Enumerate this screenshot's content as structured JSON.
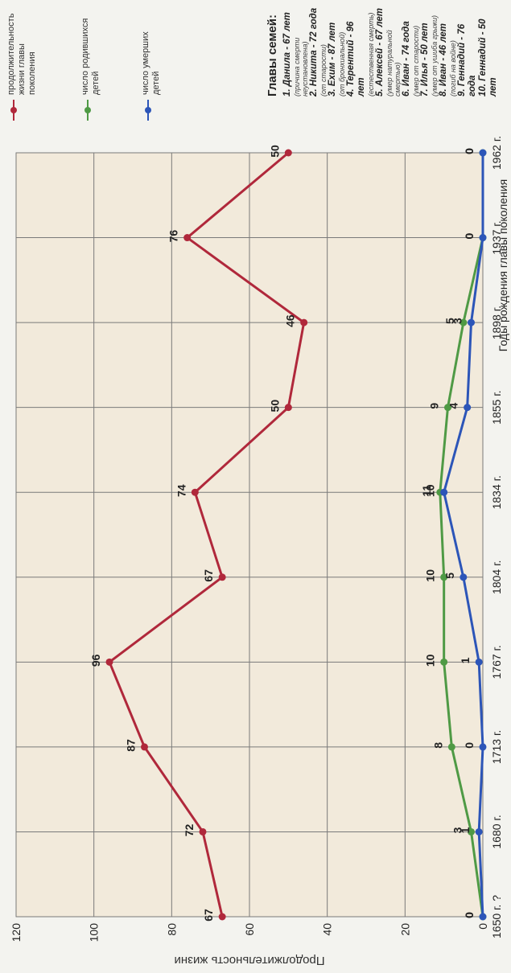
{
  "chart_data": {
    "type": "line",
    "categories": [
      "1650 г. ?",
      "1680 г.",
      "1713 г.",
      "1767 г.",
      "1804 г.",
      "1834 г.",
      "1855 г.",
      "1898 г.",
      "1937 г.",
      "1962 г."
    ],
    "ylabel": "Продолжительность жизни",
    "xlabel": "Годы рождения главы поколения",
    "ylim": [
      0,
      120
    ],
    "yticks": [
      0,
      20,
      40,
      60,
      80,
      100,
      120
    ],
    "grid": true,
    "series": [
      {
        "name": "продолжительность жизни главы поколения",
        "color": "#b0283b",
        "values": [
          67,
          72,
          87,
          96,
          67,
          74,
          50,
          46,
          76,
          50
        ],
        "labels": [
          "67",
          "72",
          "87",
          "96",
          "67",
          "74",
          "50",
          "46",
          "76",
          "50"
        ]
      },
      {
        "name": "число родившихся детей",
        "color": "#4f9a45",
        "values": [
          0,
          3,
          8,
          10,
          10,
          11,
          9,
          5,
          0,
          0
        ],
        "labels": [
          "0",
          "3",
          "8",
          "10",
          "10",
          "11",
          "9",
          "5",
          "0",
          "0"
        ]
      },
      {
        "name": "число умерших детей",
        "color": "#2c55b8",
        "values": [
          0,
          1,
          0,
          1,
          5,
          10,
          4,
          3,
          0,
          0
        ],
        "labels": [
          "0",
          "1",
          "0",
          "1",
          "5",
          "10",
          "4",
          "3",
          "0",
          "0"
        ]
      }
    ]
  },
  "legend": {
    "items": [
      {
        "text": "продолжительность жизни главы поколения",
        "color": "#b0283b"
      },
      {
        "text": "число родившихся детей",
        "color": "#4f9a45"
      },
      {
        "text": "число умерших детей",
        "color": "#2c55b8"
      }
    ]
  },
  "families": {
    "title": "Главы семей:",
    "entries": [
      {
        "line": "1. Данила - 67 лет",
        "note": "(причина смерти неустановлена)"
      },
      {
        "line": "2. Никита - 72 года",
        "note": "(от старости)"
      },
      {
        "line": "3. Ехим - 87 лет",
        "note": "(от бронхиальной)"
      },
      {
        "line": "4. Терентий - 96 лет",
        "note": "(естественная смерть)"
      },
      {
        "line": "5. Алексей - 67 лет",
        "note": "(умер натуральной смертью)"
      },
      {
        "line": "6. Иван - 74 года",
        "note": "(умер от старости)"
      },
      {
        "line": "7. Илья - 50 лет",
        "note": "(умер от ушиба грыжи)"
      },
      {
        "line": "8. Иван - 46 лет",
        "note": "(погиб на войне)"
      },
      {
        "line": "9. Геннадий - 76 года",
        "note": ""
      },
      {
        "line": "10. Геннадий - 50 лет",
        "note": ""
      }
    ]
  }
}
